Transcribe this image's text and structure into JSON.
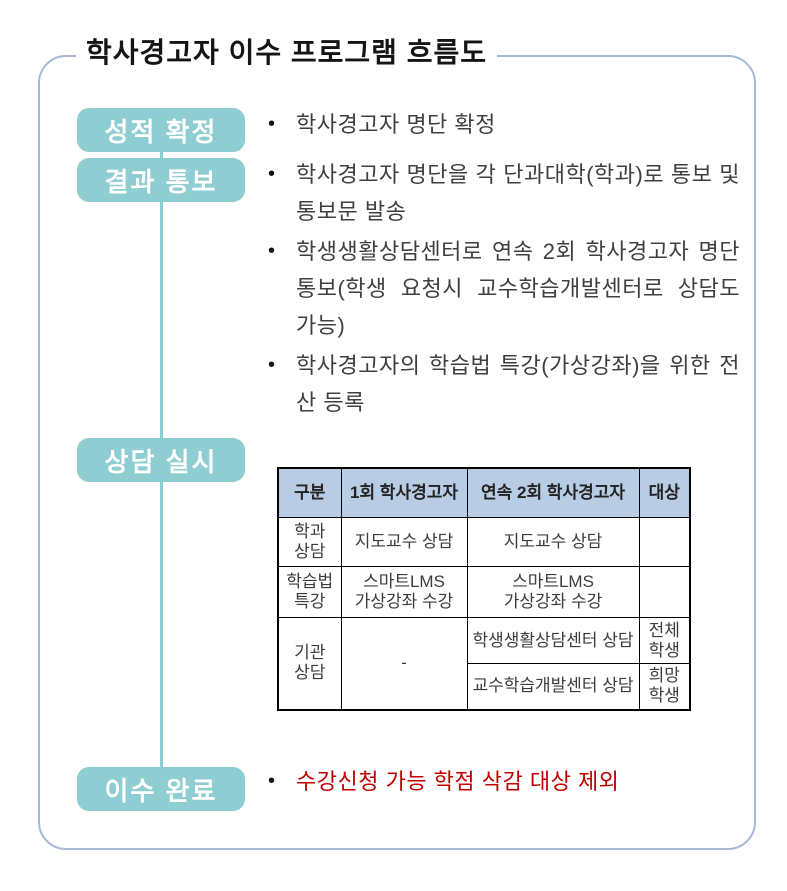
{
  "title": "학사경고자 이수 프로그램 흐름도",
  "bullet_glyph": "•",
  "flow": {
    "grade_confirm": {
      "label": "성적 확정",
      "bullets": [
        "학사경고자 명단 확정"
      ]
    },
    "result_notice": {
      "label": "결과 통보",
      "bullets": [
        "학사경고자 명단을 각 단과대학(학과)로 통보 및 통보문 발송",
        "학생생활상담센터로 연속 2회 학사경고자 명단 통보(학생 요청시 교수학습개발센터로 상담도 가능)",
        "학사경고자의 학습법 특강(가상강좌)을 위한 전산 등록"
      ]
    },
    "counsel": {
      "label": "상담 실시"
    },
    "complete": {
      "label": "이수 완료",
      "bullets": [
        "수강신청 가능 학점 삭감 대상 제외"
      ]
    }
  },
  "table": {
    "headers": [
      "구분",
      "1회 학사경고자",
      "연속 2회 학사경고자",
      "대상"
    ],
    "rows": [
      {
        "category": "학과\n상담",
        "first": "지도교수 상담",
        "second": "지도교수 상담",
        "target": ""
      },
      {
        "category": "학습법\n특강",
        "first": "스마트LMS\n가상강좌 수강",
        "second": "스마트LMS\n가상강좌 수강",
        "target": ""
      },
      {
        "category": "기관\n상담",
        "first": "-",
        "sub": [
          {
            "second": "학생생활상담센터 상담",
            "target": "전체\n학생"
          },
          {
            "second": "교수학습개발센터 상담",
            "target": "희망\n학생"
          }
        ]
      }
    ]
  },
  "colors": {
    "stage_box": "#8ecdd2",
    "frame_border": "#a6b8d6",
    "table_header_bg": "#b8cce4",
    "highlight_text": "#c00000"
  }
}
